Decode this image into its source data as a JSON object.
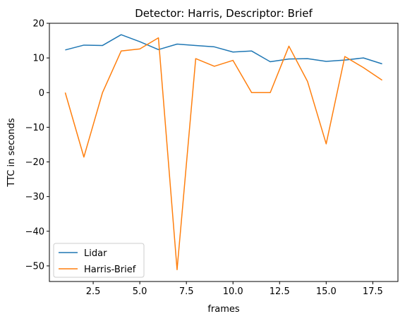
{
  "chart_data": {
    "type": "line",
    "title": "Detector: Harris, Descriptor: Brief",
    "xlabel": "frames",
    "ylabel": "TTC in seconds",
    "xlim": [
      0.15,
      18.85
    ],
    "ylim": [
      -54.5,
      20
    ],
    "x_ticks": [
      2.5,
      5.0,
      7.5,
      10.0,
      12.5,
      15.0,
      17.5
    ],
    "x_tick_labels": [
      "2.5",
      "5.0",
      "7.5",
      "10.0",
      "12.5",
      "15.0",
      "17.5"
    ],
    "y_ticks": [
      20,
      10,
      0,
      -10,
      -20,
      -30,
      -40,
      -50
    ],
    "y_tick_labels": [
      "20",
      "10",
      "0",
      "−10",
      "−20",
      "−30",
      "−40",
      "−50"
    ],
    "grid": false,
    "legend_position": "lower-left",
    "x": [
      1,
      2,
      3,
      4,
      5,
      6,
      7,
      8,
      9,
      10,
      11,
      12,
      13,
      14,
      15,
      16,
      17,
      18
    ],
    "series": [
      {
        "name": "Lidar",
        "color": "#1f77b4",
        "values": [
          12.3,
          13.7,
          13.6,
          16.7,
          14.7,
          12.4,
          14.0,
          13.6,
          13.2,
          11.7,
          12.0,
          8.9,
          9.7,
          9.8,
          9.0,
          9.4,
          10.0,
          8.3
        ]
      },
      {
        "name": "Harris-Brief",
        "color": "#ff7f0e",
        "values": [
          0.0,
          -18.6,
          0.0,
          12.0,
          12.6,
          15.8,
          -51.1,
          9.8,
          7.6,
          9.3,
          0.0,
          0.0,
          13.4,
          3.2,
          -14.8,
          10.4,
          7.2,
          3.6
        ]
      }
    ]
  }
}
